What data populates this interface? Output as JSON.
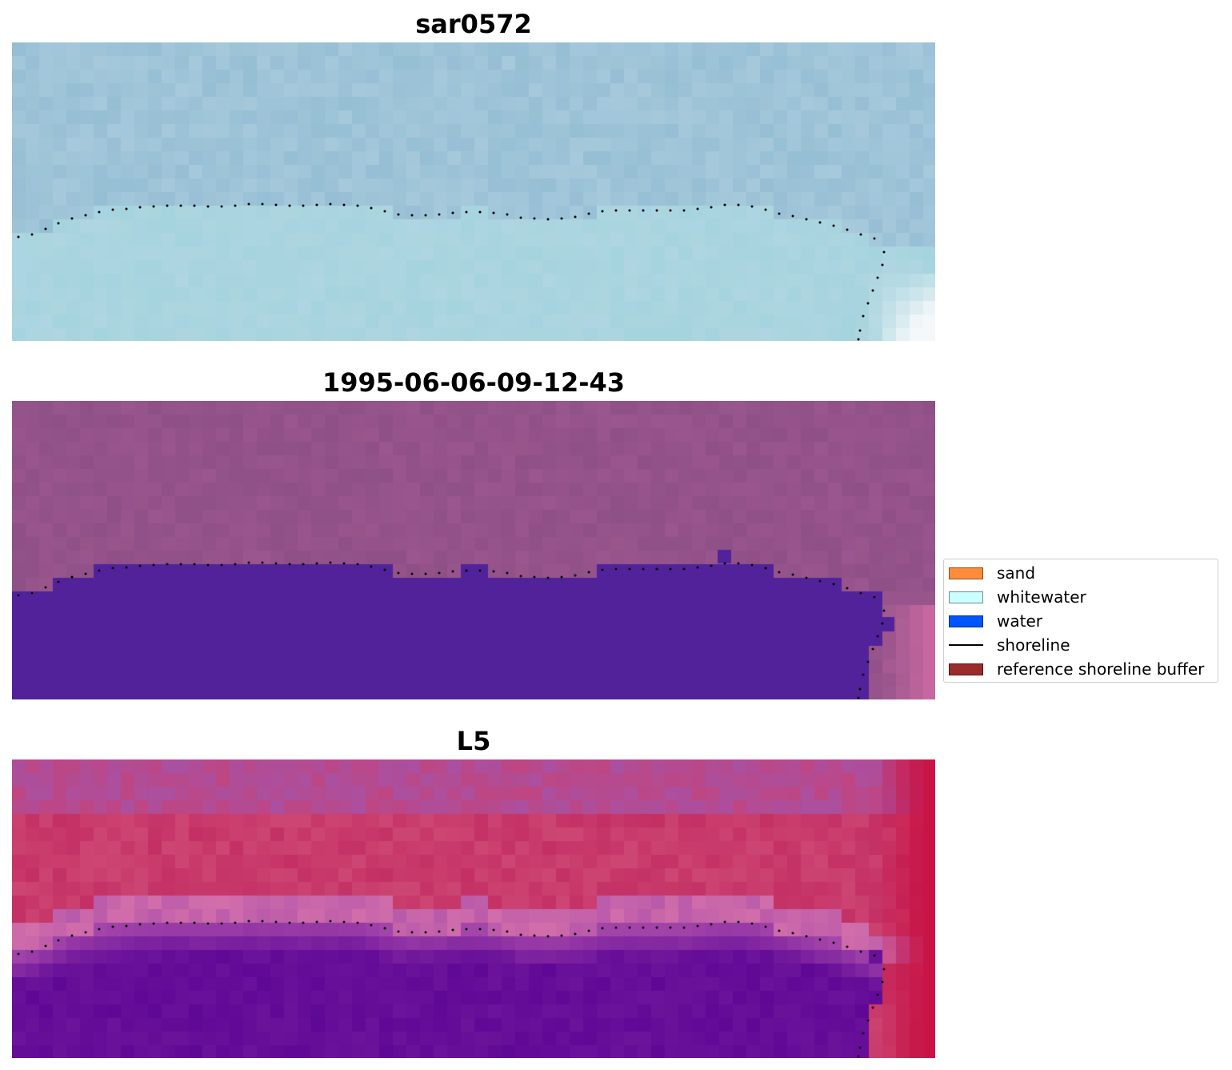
{
  "panels": [
    {
      "title": "sar0572",
      "style": "sar"
    },
    {
      "title": "1995-06-06-09-12-43",
      "style": "class"
    },
    {
      "title": "L5",
      "style": "index"
    }
  ],
  "legend": {
    "items": [
      {
        "label": "sand",
        "color": "#ff8c3a",
        "kind": "patch"
      },
      {
        "label": "whitewater",
        "color": "#ccffff",
        "kind": "patch"
      },
      {
        "label": "water",
        "color": "#0055ff",
        "kind": "patch"
      },
      {
        "label": "shoreline",
        "color": "#000000",
        "kind": "line"
      },
      {
        "label": "reference shoreline buffer",
        "color": "#9b2c2c",
        "kind": "patch"
      }
    ]
  },
  "colors": {
    "shoreline_dots": "#000000",
    "class_water": "#51229a",
    "class_land": "#93528a"
  }
}
